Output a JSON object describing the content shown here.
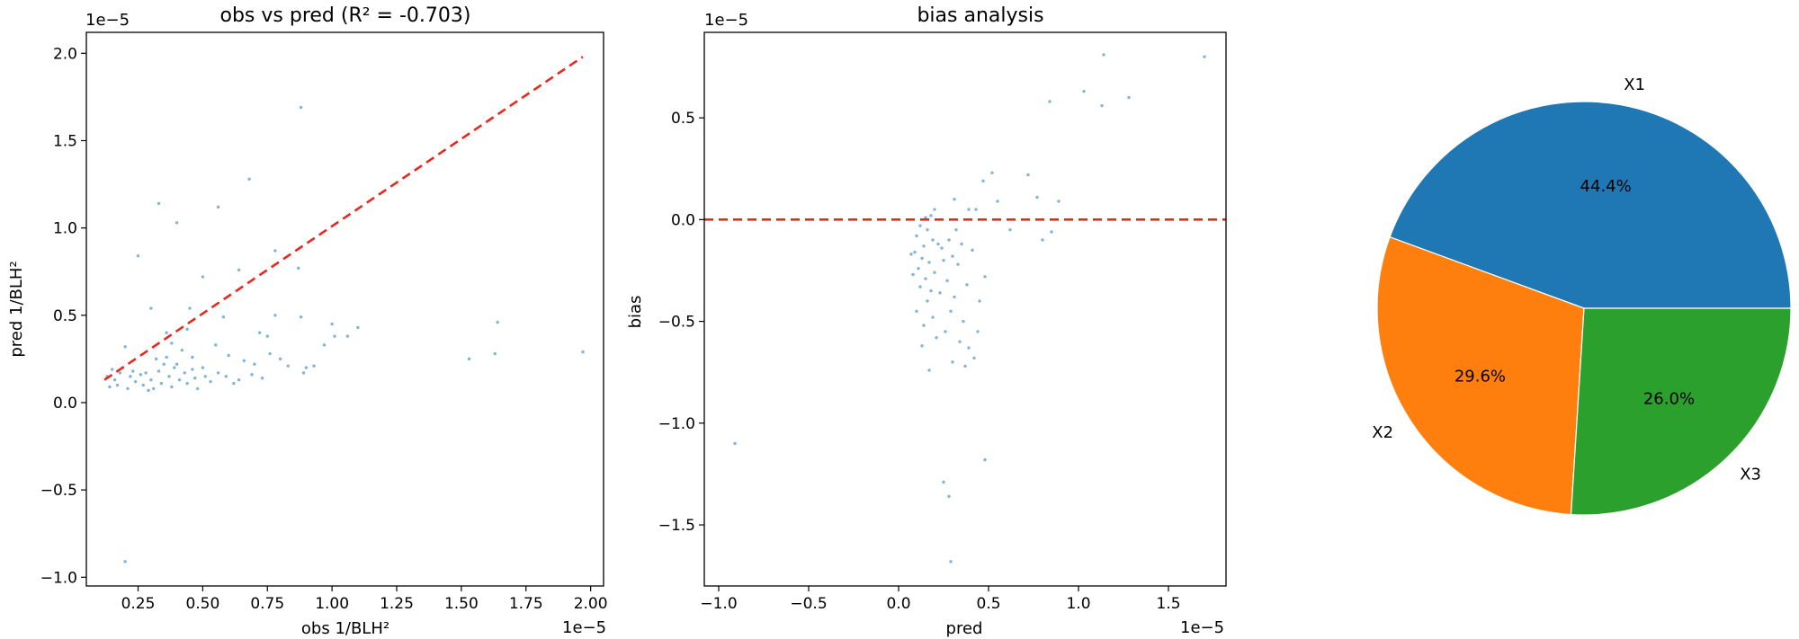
{
  "chart_data": [
    {
      "type": "scatter",
      "title": "obs vs pred (R² = -0.703)",
      "xlabel": "obs 1/BLH²",
      "ylabel": "pred 1/BLH²",
      "x_offset_label": "1e−5",
      "y_offset_label": "1e−5",
      "xlim": [
        0.05,
        2.05
      ],
      "ylim": [
        -1.05,
        2.12
      ],
      "xticks": [
        0.25,
        0.5,
        0.75,
        1.0,
        1.25,
        1.5,
        1.75,
        2.0
      ],
      "xtick_labels": [
        "0.25",
        "0.50",
        "0.75",
        "1.00",
        "1.25",
        "1.50",
        "1.75",
        "2.00"
      ],
      "yticks": [
        -1.0,
        -0.5,
        0.0,
        0.5,
        1.0,
        1.5,
        2.0
      ],
      "ytick_labels": [
        "−1.0",
        "−0.5",
        "0.0",
        "0.5",
        "1.0",
        "1.5",
        "2.0"
      ],
      "grid": false,
      "point_color": "#7fb5da",
      "line_color": "#e8281e",
      "reference_line": {
        "x": [
          0.12,
          1.97
        ],
        "y": [
          0.13,
          1.98
        ],
        "style": "dashed"
      },
      "points": [
        [
          0.88,
          1.69
        ],
        [
          0.33,
          1.14
        ],
        [
          0.68,
          1.28
        ],
        [
          0.56,
          1.12
        ],
        [
          0.4,
          1.03
        ],
        [
          0.25,
          0.84
        ],
        [
          0.78,
          0.87
        ],
        [
          0.87,
          0.77
        ],
        [
          0.64,
          0.76
        ],
        [
          0.5,
          0.72
        ],
        [
          0.3,
          0.54
        ],
        [
          0.45,
          0.54
        ],
        [
          0.58,
          0.49
        ],
        [
          0.78,
          0.5
        ],
        [
          0.88,
          0.49
        ],
        [
          1.64,
          0.46
        ],
        [
          1.0,
          0.45
        ],
        [
          1.1,
          0.43
        ],
        [
          0.72,
          0.4
        ],
        [
          0.75,
          0.38
        ],
        [
          1.01,
          0.38
        ],
        [
          1.06,
          0.38
        ],
        [
          0.97,
          0.33
        ],
        [
          1.63,
          0.28
        ],
        [
          1.53,
          0.25
        ],
        [
          1.97,
          0.29
        ],
        [
          0.2,
          0.32
        ],
        [
          0.36,
          0.4
        ],
        [
          0.38,
          0.34
        ],
        [
          0.42,
          0.3
        ],
        [
          0.46,
          0.26
        ],
        [
          0.5,
          0.2
        ],
        [
          0.55,
          0.33
        ],
        [
          0.6,
          0.27
        ],
        [
          0.66,
          0.24
        ],
        [
          0.7,
          0.22
        ],
        [
          0.76,
          0.28
        ],
        [
          0.8,
          0.25
        ],
        [
          0.83,
          0.21
        ],
        [
          0.9,
          0.2
        ],
        [
          0.93,
          0.21
        ],
        [
          0.89,
          0.17
        ],
        [
          0.15,
          0.19
        ],
        [
          0.16,
          0.13
        ],
        [
          0.18,
          0.17
        ],
        [
          0.17,
          0.1
        ],
        [
          0.22,
          0.15
        ],
        [
          0.24,
          0.12
        ],
        [
          0.26,
          0.16
        ],
        [
          0.27,
          0.1
        ],
        [
          0.28,
          0.17
        ],
        [
          0.3,
          0.13
        ],
        [
          0.31,
          0.08
        ],
        [
          0.33,
          0.18
        ],
        [
          0.34,
          0.11
        ],
        [
          0.35,
          0.22
        ],
        [
          0.37,
          0.15
        ],
        [
          0.38,
          0.09
        ],
        [
          0.39,
          0.2
        ],
        [
          0.41,
          0.13
        ],
        [
          0.43,
          0.17
        ],
        [
          0.44,
          0.11
        ],
        [
          0.46,
          0.19
        ],
        [
          0.47,
          0.14
        ],
        [
          0.48,
          0.08
        ],
        [
          0.51,
          0.15
        ],
        [
          0.53,
          0.12
        ],
        [
          0.56,
          0.17
        ],
        [
          0.59,
          0.15
        ],
        [
          0.62,
          0.11
        ],
        [
          0.64,
          0.13
        ],
        [
          0.69,
          0.16
        ],
        [
          0.73,
          0.14
        ],
        [
          0.21,
          0.08
        ],
        [
          0.19,
          0.2
        ],
        [
          0.23,
          0.18
        ],
        [
          0.29,
          0.07
        ],
        [
          0.13,
          0.15
        ],
        [
          0.14,
          0.09
        ],
        [
          0.36,
          0.26
        ],
        [
          0.44,
          0.42
        ],
        [
          0.4,
          0.22
        ],
        [
          0.32,
          0.25
        ],
        [
          0.2,
          -0.91
        ]
      ]
    },
    {
      "type": "scatter",
      "title": "bias analysis",
      "xlabel": "pred",
      "ylabel": "bias",
      "x_offset_label": "1e−5",
      "y_offset_label": "1e−5",
      "xlim": [
        -1.08,
        1.82
      ],
      "ylim": [
        -1.8,
        0.92
      ],
      "xticks": [
        -1.0,
        -0.5,
        0.0,
        0.5,
        1.0,
        1.5
      ],
      "xtick_labels": [
        "−1.0",
        "−0.5",
        "0.0",
        "0.5",
        "1.0",
        "1.5"
      ],
      "yticks": [
        -1.5,
        -1.0,
        -0.5,
        0.0,
        0.5
      ],
      "ytick_labels": [
        "−1.5",
        "−1.0",
        "−0.5",
        "0.0",
        "0.5"
      ],
      "grid": false,
      "point_color": "#7fb5da",
      "line_color": "#e8281e",
      "reference_line": {
        "y": 0.0,
        "style": "dashed"
      },
      "points": [
        [
          1.14,
          0.81
        ],
        [
          1.7,
          0.8
        ],
        [
          1.03,
          0.63
        ],
        [
          1.28,
          0.6
        ],
        [
          0.84,
          0.58
        ],
        [
          1.13,
          0.56
        ],
        [
          0.52,
          0.23
        ],
        [
          0.72,
          0.22
        ],
        [
          0.47,
          0.19
        ],
        [
          0.77,
          0.11
        ],
        [
          0.89,
          0.09
        ],
        [
          0.31,
          0.1
        ],
        [
          0.55,
          0.09
        ],
        [
          0.39,
          0.05
        ],
        [
          0.43,
          0.05
        ],
        [
          0.2,
          0.05
        ],
        [
          0.18,
          0.02
        ],
        [
          0.15,
          0.01
        ],
        [
          0.62,
          -0.05
        ],
        [
          0.85,
          -0.06
        ],
        [
          0.8,
          -0.1
        ],
        [
          0.12,
          -0.03
        ],
        [
          0.16,
          -0.05
        ],
        [
          0.1,
          -0.08
        ],
        [
          0.19,
          -0.1
        ],
        [
          0.14,
          -0.13
        ],
        [
          0.22,
          -0.12
        ],
        [
          0.09,
          -0.16
        ],
        [
          0.24,
          -0.14
        ],
        [
          0.28,
          -0.1
        ],
        [
          0.13,
          -0.19
        ],
        [
          0.17,
          -0.21
        ],
        [
          0.11,
          -0.24
        ],
        [
          0.25,
          -0.2
        ],
        [
          0.3,
          -0.18
        ],
        [
          0.35,
          -0.12
        ],
        [
          0.08,
          -0.27
        ],
        [
          0.15,
          -0.29
        ],
        [
          0.2,
          -0.26
        ],
        [
          0.33,
          -0.22
        ],
        [
          0.27,
          -0.3
        ],
        [
          0.41,
          -0.15
        ],
        [
          0.48,
          -0.28
        ],
        [
          0.38,
          -0.32
        ],
        [
          0.12,
          -0.33
        ],
        [
          0.23,
          -0.36
        ],
        [
          0.31,
          -0.38
        ],
        [
          0.16,
          -0.4
        ],
        [
          0.45,
          -0.4
        ],
        [
          0.1,
          -0.45
        ],
        [
          0.19,
          -0.48
        ],
        [
          0.29,
          -0.45
        ],
        [
          0.36,
          -0.5
        ],
        [
          0.14,
          -0.52
        ],
        [
          0.26,
          -0.55
        ],
        [
          0.21,
          -0.58
        ],
        [
          0.44,
          -0.55
        ],
        [
          0.34,
          -0.6
        ],
        [
          0.39,
          -0.63
        ],
        [
          0.3,
          -0.7
        ],
        [
          0.17,
          -0.74
        ],
        [
          0.37,
          -0.72
        ],
        [
          0.42,
          -0.68
        ],
        [
          0.48,
          -1.18
        ],
        [
          0.25,
          -1.29
        ],
        [
          0.28,
          -1.36
        ],
        [
          0.29,
          -1.68
        ],
        [
          -0.91,
          -1.1
        ],
        [
          0.07,
          -0.17
        ],
        [
          0.18,
          -0.35
        ],
        [
          0.13,
          -0.62
        ],
        [
          0.32,
          -0.05
        ]
      ]
    },
    {
      "type": "pie",
      "labels": [
        "X1",
        "X2",
        "X3"
      ],
      "values": [
        44.4,
        29.6,
        26.0
      ],
      "value_labels": [
        "44.4%",
        "29.6%",
        "26.0%"
      ],
      "colors": [
        "#1f77b4",
        "#ff7f0e",
        "#2ca02c"
      ],
      "start_angle_deg": 0,
      "direction": "counterclockwise"
    }
  ]
}
